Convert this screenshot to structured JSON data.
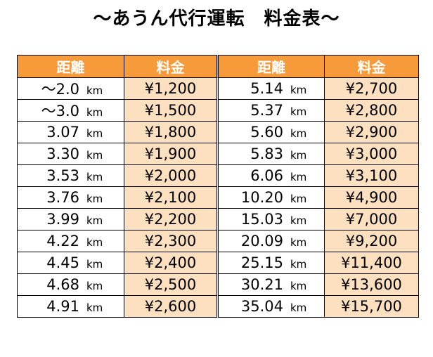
{
  "title": "～あうん代行運転　料金表～",
  "headers": {
    "distance": "距離",
    "fare": "料金"
  },
  "unit": "km",
  "left_rows": [
    {
      "distance": "～2.0",
      "fare": "¥1,200"
    },
    {
      "distance": "～3.0",
      "fare": "¥1,500"
    },
    {
      "distance": "3.07",
      "fare": "¥1,800"
    },
    {
      "distance": "3.30",
      "fare": "¥1,900"
    },
    {
      "distance": "3.53",
      "fare": "¥2,000"
    },
    {
      "distance": "3.76",
      "fare": "¥2,100"
    },
    {
      "distance": "3.99",
      "fare": "¥2,200"
    },
    {
      "distance": "4.22",
      "fare": "¥2,300"
    },
    {
      "distance": "4.45",
      "fare": "¥2,400"
    },
    {
      "distance": "4.68",
      "fare": "¥2,500"
    },
    {
      "distance": "4.91",
      "fare": "¥2,600"
    }
  ],
  "right_rows": [
    {
      "distance": "5.14",
      "fare": "¥2,700"
    },
    {
      "distance": "5.37",
      "fare": "¥2,800"
    },
    {
      "distance": "5.60",
      "fare": "¥2,900"
    },
    {
      "distance": "5.83",
      "fare": "¥3,000"
    },
    {
      "distance": "6.06",
      "fare": "¥3,100"
    },
    {
      "distance": "10.20",
      "fare": "¥4,900"
    },
    {
      "distance": "15.03",
      "fare": "¥7,000"
    },
    {
      "distance": "20.09",
      "fare": "¥9,200"
    },
    {
      "distance": "25.15",
      "fare": "¥11,400"
    },
    {
      "distance": "30.21",
      "fare": "¥13,600"
    },
    {
      "distance": "35.04",
      "fare": "¥15,700"
    }
  ],
  "colors": {
    "header_bg": "#f79a3a",
    "header_text": "#ffffff",
    "price_bg": "#fde0bf"
  }
}
